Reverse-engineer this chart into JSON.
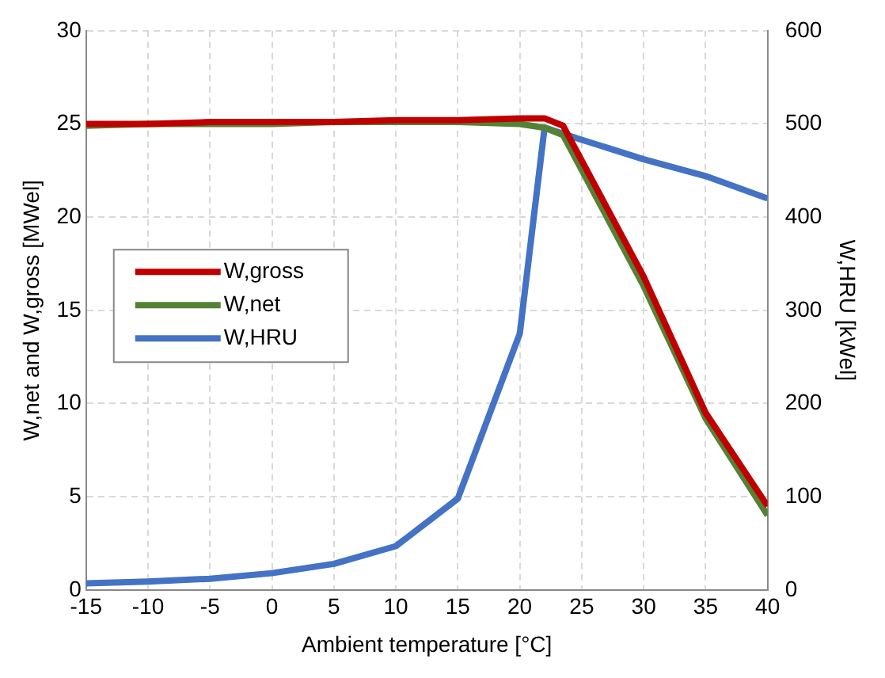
{
  "chart_data": {
    "type": "line",
    "xlabel": "Ambient temperature [°C]",
    "ylabel": "W,net and W,gross [MWel]",
    "y2label": "W,HRU [kWel]",
    "x": [
      -15,
      -10,
      -5,
      0,
      5,
      10,
      15,
      20,
      22,
      23.5,
      30,
      35,
      40
    ],
    "series": [
      {
        "name": "W,gross",
        "color": "#c00000",
        "values": [
          25.0,
          25.0,
          25.1,
          25.1,
          25.1,
          25.2,
          25.2,
          25.3,
          25.3,
          24.9,
          16.8,
          9.5,
          4.5
        ]
      },
      {
        "name": "W,net",
        "color": "#548235",
        "values": [
          24.9,
          25.0,
          25.0,
          25.0,
          25.1,
          25.1,
          25.1,
          25.0,
          24.8,
          24.4,
          16.3,
          9.2,
          4.0
        ]
      },
      {
        "name": "W,HRU",
        "color": "#4472c4",
        "axis": "y2",
        "x": [
          -15,
          -10,
          -5,
          0,
          5,
          10,
          15,
          20,
          22,
          25,
          30,
          35,
          40
        ],
        "values": [
          7,
          9,
          12,
          18,
          28,
          47,
          98,
          275,
          496,
          483,
          462,
          444,
          420
        ]
      }
    ],
    "xlim": [
      -15,
      40
    ],
    "xticks": [
      -15,
      -10,
      -5,
      0,
      5,
      10,
      15,
      20,
      25,
      30,
      35,
      40
    ],
    "ylim": [
      0,
      30
    ],
    "yticks": [
      0,
      5,
      10,
      15,
      20,
      25,
      30
    ],
    "y2lim": [
      0,
      600
    ],
    "y2ticks": [
      0,
      100,
      200,
      300,
      400,
      500,
      600
    ],
    "grid": true,
    "legend": "left",
    "marker": "none",
    "line_style": "solid"
  }
}
